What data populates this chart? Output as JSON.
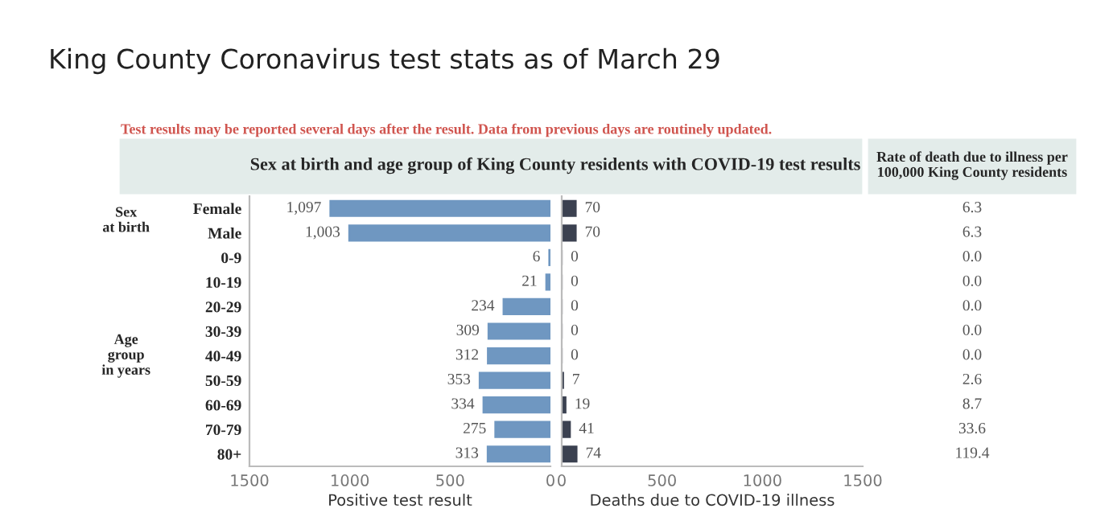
{
  "chart_data": [
    {
      "type": "bar",
      "orientation": "horizontal",
      "title": "King County Coronavirus test stats as of March 29",
      "subtitle": "Test results may be reported several days after the result. Data from previous days are routinely updated.",
      "annotations": [
        "Sex at birth and age group of King County residents with COVID-19 test results",
        "Sex at birth",
        "Age group in years"
      ],
      "categories": [
        "Female",
        "Male",
        "0-9",
        "10-19",
        "20-29",
        "30-39",
        "40-49",
        "50-59",
        "60-69",
        "70-79",
        "80+"
      ],
      "values": [
        1097,
        1003,
        6,
        21,
        234,
        309,
        312,
        353,
        334,
        275,
        313
      ],
      "value_labels": [
        "1,097",
        "1,003",
        "6",
        "21",
        "234",
        "309",
        "312",
        "353",
        "334",
        "275",
        "313"
      ],
      "color": "#6f97c1",
      "xlim": [
        1500,
        0
      ],
      "xticks": [
        1500,
        1000,
        500,
        0
      ],
      "xlabel": "Positive test result"
    },
    {
      "type": "bar",
      "orientation": "horizontal",
      "values": [
        70,
        70,
        0,
        0,
        0,
        0,
        0,
        7,
        19,
        41,
        74
      ],
      "data_labels": true,
      "color": "#3b4150",
      "xlim": [
        0,
        1500
      ],
      "xticks": [
        0,
        500,
        1000,
        1500
      ],
      "xlabel": "Deaths due to COVID-19 illness",
      "tick_labels": "x"
    },
    {
      "type": "other",
      "title": "Rate of death due to illness per\n100,000 King County residents",
      "annotations": [
        "6.3",
        "6.3",
        "0.0",
        "0.0",
        "0.0",
        "0.0",
        "0.0",
        "2.6",
        "8.7",
        "33.6",
        "119.4"
      ]
    }
  ]
}
